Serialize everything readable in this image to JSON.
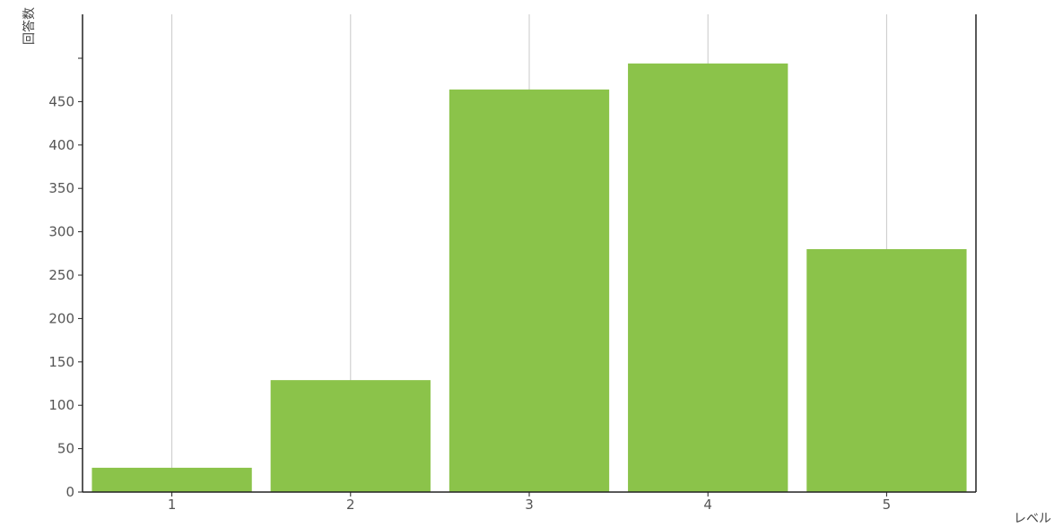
{
  "chart_data": {
    "type": "bar",
    "categories": [
      "1",
      "2",
      "3",
      "4",
      "5"
    ],
    "values": [
      28,
      129,
      464,
      494,
      280
    ],
    "ylim": [
      0,
      500
    ],
    "yticks": [
      0,
      50,
      100,
      150,
      200,
      250,
      300,
      350,
      400,
      450
    ],
    "ylabel": "回答数",
    "xlabel": "レベル",
    "grid": "vertical lines at category centers",
    "colors": {
      "bar": "#8bc34a",
      "gridline": "#c8c8c8",
      "axis": "#222222"
    }
  }
}
